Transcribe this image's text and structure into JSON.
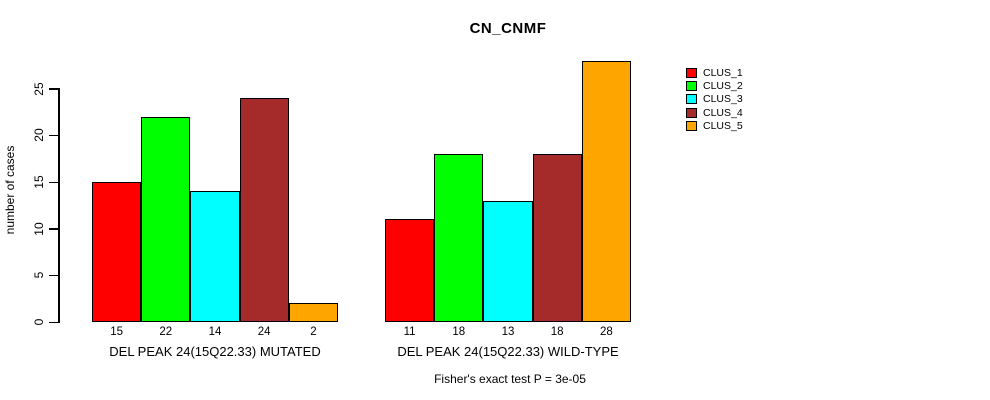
{
  "title": "CN_CNMF",
  "y_axis": {
    "label": "number of cases",
    "ticks": [
      0,
      5,
      10,
      15,
      20,
      25
    ]
  },
  "footnote": "Fisher's exact test P = 3e-05",
  "chart_data": {
    "type": "bar",
    "title": "CN_CNMF",
    "ylabel": "number of cases",
    "xlabel": "",
    "ylim": [
      0,
      25
    ],
    "grid": false,
    "legend_position": "right-outside",
    "series": [
      "CLUS_1",
      "CLUS_2",
      "CLUS_3",
      "CLUS_4",
      "CLUS_5"
    ],
    "colors": [
      "#FF0000",
      "#00FF00",
      "#00FFFF",
      "#A52A2A",
      "#FFA500"
    ],
    "groups": [
      {
        "label": "DEL PEAK 24(15Q22.33) MUTATED",
        "values": [
          15,
          22,
          14,
          24,
          2
        ]
      },
      {
        "label": "DEL PEAK 24(15Q22.33) WILD-TYPE",
        "values": [
          11,
          18,
          13,
          18,
          28
        ]
      }
    ],
    "bar_value_labels_shown": true,
    "footnote": "Fisher's exact test P = 3e-05"
  }
}
